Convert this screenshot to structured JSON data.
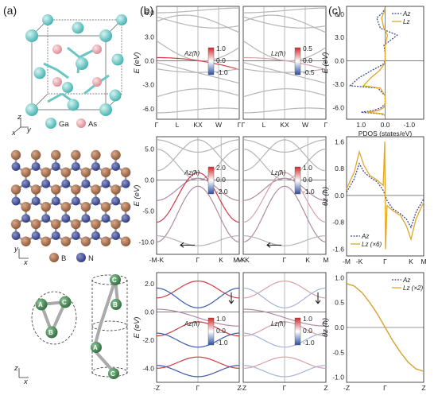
{
  "panels": {
    "a": "(a)",
    "b": "(b)",
    "c": "(c)"
  },
  "structures": {
    "gaas": {
      "atom1": "Ga",
      "atom2": "As",
      "colors": {
        "Ga": "#55c4c2",
        "As": "#e8a6ad"
      }
    },
    "bn": {
      "atom1": "B",
      "atom2": "N",
      "colors": {
        "B": "#a36b4a",
        "N": "#3f4a8c"
      }
    },
    "helix": {
      "atoms": [
        "A",
        "B",
        "C"
      ],
      "color": "#3d7a4a"
    },
    "axes": {
      "x": "x",
      "y": "y",
      "z": "z"
    }
  },
  "bands": {
    "row1": {
      "ylabel": "E (eV)",
      "yticks": [
        "6.0",
        "3.0",
        "0.0",
        "-3.0",
        "-6.0"
      ],
      "kpoints": [
        "Γ",
        "L",
        "KX",
        "W",
        "Γ"
      ],
      "left_label": "A",
      "right_label": "L",
      "left_cbar": [
        "1.0",
        "0.0",
        "-1.0"
      ],
      "right_cbar": [
        "0.5",
        "0.0",
        "-0.5"
      ]
    },
    "row2": {
      "ylabel": "E (eV)",
      "yticks": [
        "5.0",
        "0.0",
        "-5.0",
        "-10.0"
      ],
      "kpoints": [
        "-M-K",
        "Γ",
        "K",
        "M-K"
      ],
      "right_kpoints": [
        "M-K",
        "Γ",
        "K",
        "M"
      ],
      "left_label": "A",
      "right_label": "L",
      "left_cbar": [
        "2.0",
        "0.0",
        "-2.0"
      ],
      "right_cbar": [
        "1.0",
        "0.0",
        "-1.0"
      ]
    },
    "row3": {
      "ylabel": "E (eV)",
      "yticks": [
        "2.0",
        "0.0",
        "-2.0",
        "-4.0"
      ],
      "kpoints": [
        "-Z",
        "Γ",
        "Z"
      ],
      "left_label": "A",
      "right_label": "L",
      "left_cbar": [
        "1.0",
        "0.0",
        "-1.0"
      ],
      "right_cbar": [
        "1.0",
        "0.0",
        "-1.0"
      ]
    }
  },
  "chart_data": [
    {
      "type": "line",
      "title": "",
      "xlabel": "PDOS (states/eV)",
      "ylabel": "E (eV)",
      "xticks": [
        "1.0",
        "0.0",
        "-1.0"
      ],
      "yticks": [
        "6.0",
        "3.0",
        "0.0",
        "-3.0",
        "-6.0"
      ],
      "xlim": [
        1.6,
        -1.6
      ],
      "ylim": [
        -7.5,
        7
      ],
      "legend": "top-right",
      "series": [
        {
          "name": "A_z",
          "style": "dotted",
          "color": "#3b4b8f",
          "x": [
            0,
            0.1,
            0.35,
            0.2,
            -0.5,
            0.05,
            0,
            0,
            0.1,
            0.6,
            1.1,
            1.45,
            0.3,
            0,
            0,
            0.15,
            0.5,
            1.0,
            0.2,
            0
          ],
          "y": [
            6.8,
            6.2,
            5.5,
            4.2,
            3.3,
            2.0,
            1.0,
            0,
            -0.5,
            -1.3,
            -2.2,
            -3.2,
            -3.5,
            -4.5,
            -5.5,
            -6.0,
            -6.4,
            -6.6,
            -6.8,
            -7.0
          ]
        },
        {
          "name": "L_z",
          "style": "solid",
          "color": "#e0a726",
          "x": [
            0,
            0.05,
            0.15,
            0.05,
            -0.1,
            0,
            0,
            0,
            0.05,
            0.25,
            0.6,
            0.9,
            0.2,
            0,
            0,
            0.05,
            0.3,
            0.75,
            0.1,
            0
          ],
          "y": [
            6.8,
            6.2,
            5.5,
            4.2,
            3.3,
            2.0,
            1.0,
            0,
            -0.5,
            -1.3,
            -2.2,
            -3.2,
            -3.5,
            -4.5,
            -5.5,
            -6.0,
            -6.4,
            -6.6,
            -6.8,
            -7.0
          ]
        }
      ]
    },
    {
      "type": "line",
      "title": "",
      "xlabel": "",
      "ylabel": "θz (ħ)",
      "xticks": [
        "-M",
        "-K",
        "Γ",
        "K",
        "M"
      ],
      "yticks": [
        "1.6",
        "0.8",
        "0.0",
        "-0.8",
        "-1.6"
      ],
      "ylim": [
        -1.8,
        1.75
      ],
      "legend": "bottom-left",
      "series": [
        {
          "name": "A_z",
          "style": "dotted",
          "color": "#3b4b8f",
          "x": [
            -1,
            -0.8,
            -0.67,
            -0.55,
            -0.4,
            -0.2,
            -0.05,
            0,
            0.05,
            0.2,
            0.4,
            0.55,
            0.67,
            0.8,
            1
          ],
          "y": [
            0.1,
            0.5,
            0.95,
            0.7,
            0.55,
            0.4,
            0.15,
            0,
            -0.15,
            -0.4,
            -0.55,
            -0.7,
            -0.95,
            -0.5,
            -0.1
          ]
        },
        {
          "name": "L_z (×6)",
          "style": "solid",
          "color": "#e0a726",
          "x": [
            -1,
            -0.8,
            -0.67,
            -0.55,
            -0.4,
            -0.2,
            -0.05,
            -0.01,
            0.01,
            0.05,
            0.2,
            0.4,
            0.55,
            0.67,
            0.8,
            1
          ],
          "y": [
            0.2,
            0.7,
            1.3,
            0.9,
            0.6,
            0.45,
            0.3,
            1.6,
            -1.6,
            -0.3,
            -0.45,
            -0.6,
            -0.9,
            -1.3,
            -0.7,
            -0.2
          ]
        }
      ]
    },
    {
      "type": "line",
      "title": "",
      "xlabel": "",
      "ylabel": "θz (ħ)",
      "xticks": [
        "-Z",
        "Γ",
        "Z"
      ],
      "yticks": [
        "1.0",
        "0.5",
        "0.0",
        "-0.5",
        "-1.0"
      ],
      "ylim": [
        -1.1,
        1.1
      ],
      "legend": "top-right",
      "series": [
        {
          "name": "A_z",
          "style": "dotted",
          "color": "#3b4b8f",
          "x": [
            -1,
            -0.8,
            -0.6,
            -0.4,
            -0.2,
            0,
            0.2,
            0.4,
            0.6,
            0.8,
            1
          ],
          "y": [
            0.88,
            0.83,
            0.7,
            0.5,
            0.27,
            0,
            -0.27,
            -0.5,
            -0.7,
            -0.83,
            -0.88
          ]
        },
        {
          "name": "L_z (×2)",
          "style": "solid",
          "color": "#e0a726",
          "x": [
            -1,
            -0.8,
            -0.6,
            -0.4,
            -0.2,
            0,
            0.2,
            0.4,
            0.6,
            0.8,
            1
          ],
          "y": [
            0.88,
            0.83,
            0.7,
            0.5,
            0.27,
            0,
            -0.27,
            -0.5,
            -0.7,
            -0.83,
            -0.88
          ]
        }
      ]
    }
  ]
}
